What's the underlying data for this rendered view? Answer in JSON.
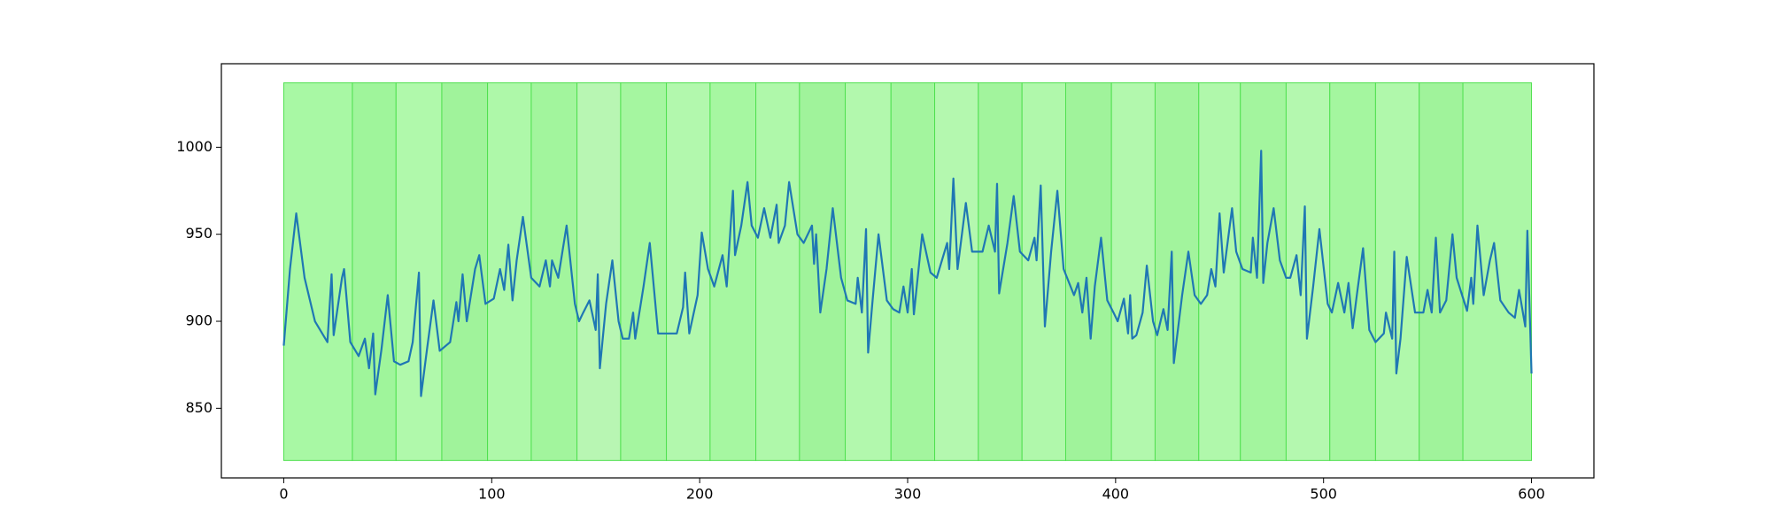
{
  "chart_data": {
    "type": "line",
    "xlim": [
      -30,
      630
    ],
    "ylim": [
      810,
      1048
    ],
    "xticks": [
      0,
      100,
      200,
      300,
      400,
      500,
      600
    ],
    "yticks": [
      850,
      900,
      950,
      1000
    ],
    "span_ylim": [
      820,
      1037
    ],
    "span_edge_color": "#4fe04f",
    "spans": [
      {
        "x": [
          0,
          33
        ],
        "color": "#a8f8a4"
      },
      {
        "x": [
          33,
          54
        ],
        "color": "#9ff59b"
      },
      {
        "x": [
          54,
          76
        ],
        "color": "#b0f9ab"
      },
      {
        "x": [
          76,
          98
        ],
        "color": "#a0f39b"
      },
      {
        "x": [
          98,
          119
        ],
        "color": "#aef8a9"
      },
      {
        "x": [
          119,
          141
        ],
        "color": "#a2f59d"
      },
      {
        "x": [
          141,
          162
        ],
        "color": "#b8f6b3"
      },
      {
        "x": [
          162,
          184
        ],
        "color": "#a5f6a0"
      },
      {
        "x": [
          184,
          205
        ],
        "color": "#b2f8ad"
      },
      {
        "x": [
          205,
          227
        ],
        "color": "#a6f7a1"
      },
      {
        "x": [
          227,
          248
        ],
        "color": "#aff8aa"
      },
      {
        "x": [
          248,
          270
        ],
        "color": "#a0f39b"
      },
      {
        "x": [
          270,
          292
        ],
        "color": "#b2f8ad"
      },
      {
        "x": [
          292,
          313
        ],
        "color": "#a3f59e"
      },
      {
        "x": [
          313,
          334
        ],
        "color": "#b4f8af"
      },
      {
        "x": [
          334,
          355
        ],
        "color": "#a2f49d"
      },
      {
        "x": [
          355,
          376
        ],
        "color": "#b0f8ab"
      },
      {
        "x": [
          376,
          398
        ],
        "color": "#a0f39b"
      },
      {
        "x": [
          398,
          419
        ],
        "color": "#b2f8ad"
      },
      {
        "x": [
          419,
          440
        ],
        "color": "#a2f49d"
      },
      {
        "x": [
          440,
          460
        ],
        "color": "#b0f8ab"
      },
      {
        "x": [
          460,
          482
        ],
        "color": "#a3f59e"
      },
      {
        "x": [
          482,
          503
        ],
        "color": "#b4f8af"
      },
      {
        "x": [
          503,
          525
        ],
        "color": "#a4f69f"
      },
      {
        "x": [
          525,
          546
        ],
        "color": "#b0f8ab"
      },
      {
        "x": [
          546,
          567
        ],
        "color": "#a0f39b"
      },
      {
        "x": [
          567,
          600
        ],
        "color": "#abf7a6"
      }
    ],
    "x": [
      0,
      3,
      6,
      10,
      15,
      21,
      23,
      24,
      28,
      29,
      32,
      36,
      39,
      41,
      43,
      44,
      47,
      50,
      53,
      56,
      60,
      62,
      65,
      66,
      69,
      72,
      75,
      80,
      83,
      84,
      86,
      88,
      92,
      94,
      97,
      101,
      104,
      106,
      108,
      110,
      112,
      115,
      119,
      123,
      126,
      128,
      129,
      132,
      136,
      140,
      142,
      144,
      147,
      150,
      151,
      152,
      155,
      158,
      161,
      163,
      166,
      168,
      169,
      173,
      176,
      180,
      182,
      189,
      192,
      193,
      195,
      199,
      201,
      204,
      207,
      211,
      213,
      216,
      217,
      220,
      223,
      225,
      228,
      231,
      234,
      237,
      238,
      241,
      243,
      247,
      250,
      254,
      255,
      256,
      258,
      261,
      264,
      268,
      271,
      275,
      276,
      278,
      280,
      281,
      283,
      286,
      290,
      293,
      296,
      298,
      300,
      302,
      303,
      307,
      311,
      314,
      319,
      320,
      322,
      324,
      328,
      331,
      336,
      339,
      342,
      343,
      344,
      348,
      351,
      354,
      358,
      361,
      362,
      364,
      366,
      369,
      372,
      375,
      380,
      382,
      384,
      386,
      388,
      390,
      393,
      396,
      399,
      401,
      404,
      406,
      407,
      408,
      410,
      413,
      415,
      418,
      420,
      423,
      425,
      427,
      428,
      432,
      435,
      438,
      441,
      444,
      446,
      448,
      450,
      452,
      456,
      458,
      461,
      465,
      466,
      468,
      470,
      471,
      473,
      476,
      479,
      482,
      484,
      487,
      489,
      491,
      492,
      495,
      498,
      502,
      504,
      507,
      510,
      512,
      514,
      516,
      519,
      522,
      525,
      529,
      530,
      533,
      534,
      535,
      537,
      540,
      544,
      548,
      550,
      552,
      554,
      556,
      559,
      562,
      564,
      569,
      571,
      572,
      574,
      577,
      580,
      582,
      585,
      589,
      592,
      594,
      597,
      598,
      600
    ],
    "series": [
      {
        "color": "#1f77b4",
        "values": [
          886,
          930,
          962,
          925,
          900,
          888,
          927,
          892,
          925,
          930,
          888,
          880,
          890,
          873,
          893,
          858,
          884,
          915,
          877,
          875,
          877,
          888,
          928,
          857,
          885,
          912,
          883,
          888,
          911,
          900,
          927,
          900,
          930,
          938,
          910,
          913,
          930,
          918,
          944,
          912,
          935,
          960,
          925,
          920,
          935,
          920,
          935,
          925,
          955,
          910,
          900,
          905,
          912,
          895,
          927,
          873,
          910,
          935,
          900,
          890,
          890,
          905,
          890,
          920,
          945,
          893,
          893,
          893,
          908,
          928,
          893,
          915,
          951,
          930,
          920,
          938,
          920,
          975,
          938,
          955,
          980,
          955,
          948,
          965,
          948,
          967,
          945,
          955,
          980,
          950,
          945,
          955,
          933,
          950,
          905,
          930,
          965,
          925,
          912,
          910,
          925,
          905,
          953,
          882,
          910,
          950,
          912,
          907,
          905,
          920,
          905,
          930,
          904,
          950,
          928,
          925,
          945,
          930,
          982,
          930,
          968,
          940,
          940,
          955,
          940,
          979,
          916,
          945,
          972,
          940,
          935,
          948,
          935,
          978,
          897,
          940,
          975,
          930,
          915,
          922,
          905,
          925,
          890,
          920,
          948,
          912,
          905,
          900,
          913,
          893,
          915,
          890,
          892,
          905,
          932,
          900,
          892,
          907,
          895,
          940,
          876,
          915,
          940,
          915,
          910,
          915,
          930,
          920,
          962,
          928,
          965,
          940,
          930,
          928,
          948,
          925,
          998,
          922,
          945,
          965,
          935,
          925,
          925,
          938,
          915,
          966,
          890,
          920,
          953,
          910,
          905,
          922,
          905,
          922,
          896,
          915,
          942,
          895,
          888,
          893,
          905,
          890,
          940,
          870,
          890,
          937,
          905,
          905,
          918,
          905,
          948,
          905,
          912,
          950,
          925,
          906,
          925,
          910,
          955,
          915,
          935,
          945,
          912,
          905,
          902,
          918,
          897,
          952,
          870
        ]
      }
    ]
  }
}
